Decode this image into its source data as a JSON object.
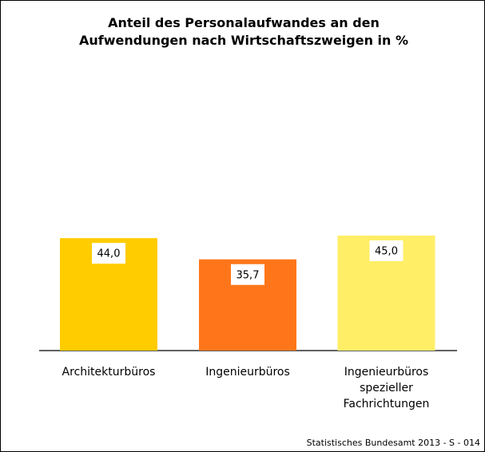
{
  "chart_data": {
    "type": "bar",
    "title": "Anteil des Personalaufwandes an den Aufwendungen nach Wirtschaftszweigen in %",
    "categories": [
      "Architekturbüros",
      "Ingenieurbüros",
      "Ingenieurbüros spezieller Fachrichtungen"
    ],
    "values": [
      44.0,
      35.7,
      45.0
    ],
    "value_labels": [
      "44,0",
      "35,7",
      "45,0"
    ],
    "colors": [
      "#ffcc00",
      "#ff761a",
      "#ffee66"
    ],
    "source": "Statistisches Bundesamt 2013 - S - 014"
  }
}
